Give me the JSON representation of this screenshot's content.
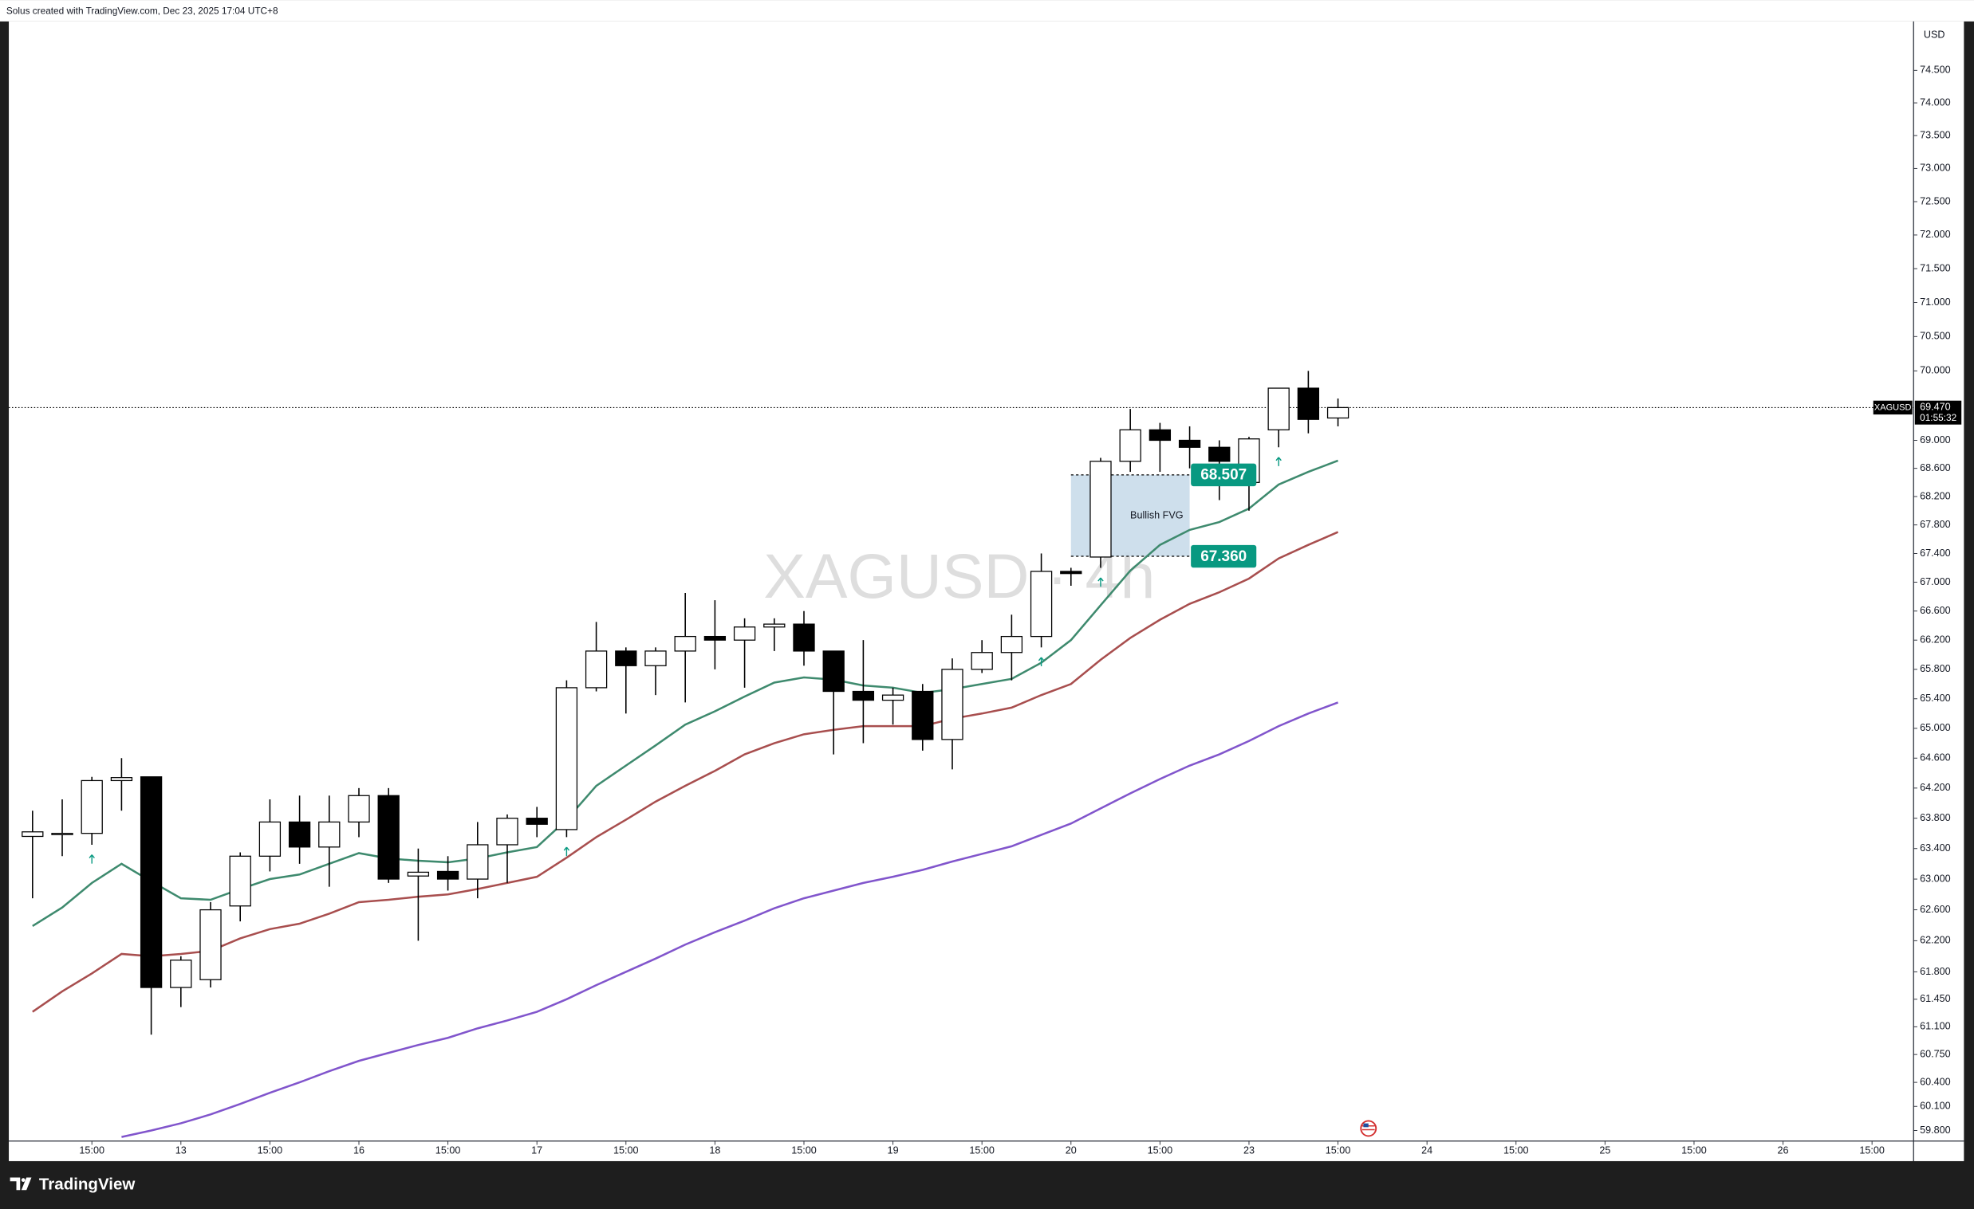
{
  "header": {
    "text": "Solus created with TradingView.com, Dec 23, 2025 17:04 UTC+8"
  },
  "chart_data": {
    "type": "candlestick",
    "watermark": "XAGUSD · 4h",
    "currency": "USD",
    "log_scale": true,
    "ylim": [
      59.67,
      75.26
    ],
    "yticks": [
      {
        "value": 59.8,
        "label": "59.800"
      },
      {
        "value": 60.1,
        "label": "60.100"
      },
      {
        "value": 60.4,
        "label": "60.400"
      },
      {
        "value": 60.75,
        "label": "60.750"
      },
      {
        "value": 61.1,
        "label": "61.100"
      },
      {
        "value": 61.45,
        "label": "61.450"
      },
      {
        "value": 61.8,
        "label": "61.800"
      },
      {
        "value": 62.2,
        "label": "62.200"
      },
      {
        "value": 62.6,
        "label": "62.600"
      },
      {
        "value": 63,
        "label": "63.000"
      },
      {
        "value": 63.4,
        "label": "63.400"
      },
      {
        "value": 63.8,
        "label": "63.800"
      },
      {
        "value": 64.2,
        "label": "64.200"
      },
      {
        "value": 64.6,
        "label": "64.600"
      },
      {
        "value": 65,
        "label": "65.000"
      },
      {
        "value": 65.4,
        "label": "65.400"
      },
      {
        "value": 65.8,
        "label": "65.800"
      },
      {
        "value": 66.2,
        "label": "66.200"
      },
      {
        "value": 66.6,
        "label": "66.600"
      },
      {
        "value": 67,
        "label": "67.000"
      },
      {
        "value": 67.4,
        "label": "67.400"
      },
      {
        "value": 67.8,
        "label": "67.800"
      },
      {
        "value": 68.2,
        "label": "68.200"
      },
      {
        "value": 68.6,
        "label": "68.600"
      },
      {
        "value": 69,
        "label": "69.000"
      },
      {
        "value": 70,
        "label": "70.000"
      },
      {
        "value": 70.5,
        "label": "70.500"
      },
      {
        "value": 71,
        "label": "71.000"
      },
      {
        "value": 71.5,
        "label": "71.500"
      },
      {
        "value": 72,
        "label": "72.000"
      },
      {
        "value": 72.5,
        "label": "72.500"
      },
      {
        "value": 73,
        "label": "73.000"
      },
      {
        "value": 73.5,
        "label": "73.500"
      },
      {
        "value": 74,
        "label": "74.000"
      },
      {
        "value": 74.5,
        "label": "74.500"
      }
    ],
    "xlim": [
      -0.8,
      63.4
    ],
    "xticks": [
      {
        "value": 2,
        "label": "15:00"
      },
      {
        "value": 5,
        "label": "13"
      },
      {
        "value": 8,
        "label": "15:00"
      },
      {
        "value": 11,
        "label": "16"
      },
      {
        "value": 14,
        "label": "15:00"
      },
      {
        "value": 17,
        "label": "17"
      },
      {
        "value": 20,
        "label": "15:00"
      },
      {
        "value": 23,
        "label": "18"
      },
      {
        "value": 26,
        "label": "15:00"
      },
      {
        "value": 29,
        "label": "19"
      },
      {
        "value": 32,
        "label": "15:00"
      },
      {
        "value": 35,
        "label": "20"
      },
      {
        "value": 38,
        "label": "15:00"
      },
      {
        "value": 41,
        "label": "23"
      },
      {
        "value": 44,
        "label": "15:00"
      },
      {
        "value": 47,
        "label": "24"
      },
      {
        "value": 50,
        "label": "15:00"
      },
      {
        "value": 53,
        "label": "25"
      },
      {
        "value": 56,
        "label": "15:00"
      },
      {
        "value": 59,
        "label": "26"
      },
      {
        "value": 62,
        "label": "15:00"
      }
    ],
    "open": [
      63.56,
      63.6,
      63.6,
      64.3,
      64.35,
      61.6,
      61.7,
      62.65,
      63.3,
      63.75,
      63.42,
      63.75,
      64.1,
      63.04,
      63.1,
      63.0,
      63.45,
      63.8,
      63.65,
      65.55,
      66.05,
      65.85,
      66.05,
      66.25,
      66.2,
      66.38,
      66.42,
      66.05,
      65.5,
      65.38,
      65.5,
      64.85,
      65.8,
      66.03,
      66.25,
      67.15,
      67.35,
      68.7,
      69.15,
      69.0,
      68.9,
      68.4,
      69.15,
      69.75,
      69.32
    ],
    "high": [
      63.9,
      64.05,
      64.35,
      64.6,
      64.35,
      62.0,
      62.7,
      63.35,
      64.05,
      64.1,
      64.1,
      64.2,
      64.2,
      63.4,
      63.3,
      63.75,
      63.85,
      63.95,
      65.65,
      66.45,
      66.1,
      66.1,
      66.85,
      66.75,
      66.5,
      66.5,
      66.6,
      66.05,
      66.2,
      65.55,
      65.6,
      65.95,
      66.2,
      66.55,
      67.4,
      67.2,
      68.75,
      69.45,
      69.25,
      69.2,
      69.0,
      69.05,
      69.75,
      70.0,
      69.6
    ],
    "low": [
      62.75,
      63.3,
      63.45,
      63.9,
      61.0,
      61.35,
      61.6,
      62.45,
      63.1,
      63.2,
      62.9,
      63.55,
      62.95,
      62.2,
      62.85,
      62.75,
      62.95,
      63.55,
      63.55,
      65.5,
      65.2,
      65.45,
      65.35,
      65.8,
      65.55,
      66.05,
      65.85,
      64.65,
      64.8,
      65.05,
      64.7,
      64.45,
      65.75,
      65.65,
      66.1,
      66.95,
      67.2,
      68.55,
      68.55,
      68.6,
      68.15,
      68.0,
      68.9,
      69.1,
      69.2
    ],
    "close": [
      63.62,
      63.6,
      64.3,
      64.34,
      61.6,
      61.95,
      62.6,
      63.3,
      63.75,
      63.42,
      63.75,
      64.1,
      63.0,
      63.09,
      63.0,
      63.45,
      63.8,
      63.72,
      65.55,
      66.05,
      65.85,
      66.05,
      66.25,
      66.2,
      66.38,
      66.42,
      66.05,
      65.5,
      65.38,
      65.45,
      64.85,
      65.8,
      66.03,
      66.25,
      67.15,
      67.12,
      68.7,
      69.15,
      69.0,
      68.9,
      68.7,
      69.02,
      69.75,
      69.3,
      69.47
    ],
    "up_color": "#ffffff",
    "down_color": "#000000",
    "lines": [
      {
        "color": "#3e8a6e",
        "values": [
          62.39,
          62.63,
          62.95,
          63.2,
          62.97,
          62.75,
          62.73,
          62.87,
          63.0,
          63.06,
          63.2,
          63.34,
          63.27,
          63.24,
          63.22,
          63.27,
          63.35,
          63.42,
          63.78,
          64.23,
          64.5,
          64.77,
          65.05,
          65.23,
          65.43,
          65.62,
          65.69,
          65.66,
          65.58,
          65.55,
          65.48,
          65.53,
          65.6,
          65.67,
          65.89,
          66.2,
          66.68,
          67.16,
          67.52,
          67.73,
          67.84,
          68.03,
          68.37,
          68.55,
          68.71
        ]
      },
      {
        "color": "#a84e4e",
        "values": [
          61.29,
          61.55,
          61.78,
          62.03,
          62.0,
          62.03,
          62.07,
          62.23,
          62.35,
          62.42,
          62.55,
          62.7,
          62.73,
          62.77,
          62.8,
          62.87,
          62.95,
          63.03,
          63.28,
          63.55,
          63.78,
          64.02,
          64.23,
          64.43,
          64.65,
          64.8,
          64.92,
          64.98,
          65.03,
          65.03,
          65.03,
          65.13,
          65.2,
          65.28,
          65.45,
          65.6,
          65.93,
          66.23,
          66.48,
          66.7,
          66.86,
          67.05,
          67.33,
          67.52,
          67.7
        ]
      },
      {
        "color": "#8155cc",
        "values": [
          null,
          null,
          null,
          59.72,
          59.8,
          59.89,
          60.0,
          60.13,
          60.27,
          60.4,
          60.54,
          60.67,
          60.77,
          60.87,
          60.96,
          61.08,
          61.18,
          61.29,
          61.45,
          61.63,
          61.8,
          61.97,
          62.15,
          62.31,
          62.46,
          62.62,
          62.75,
          62.85,
          62.95,
          63.03,
          63.12,
          63.23,
          63.33,
          63.43,
          63.58,
          63.73,
          63.93,
          64.13,
          64.32,
          64.5,
          64.65,
          64.83,
          65.03,
          65.2,
          65.35
        ]
      }
    ],
    "signals": [
      2,
      18,
      34,
      36,
      42
    ],
    "signal_color": "#089981",
    "last_price": {
      "symbol": "XAGUSD",
      "value": 69.47,
      "label": "69.470",
      "countdown": "01:55:32"
    },
    "fvg": {
      "top": 68.507,
      "bottom": 67.36,
      "top_label": "68.507",
      "bottom_label": "67.360",
      "label": "Bullish FVG",
      "start": 35,
      "end": 39,
      "color": "#c9dcea",
      "label_color": "#089981"
    }
  },
  "footer": {
    "brand": "TradingView"
  }
}
